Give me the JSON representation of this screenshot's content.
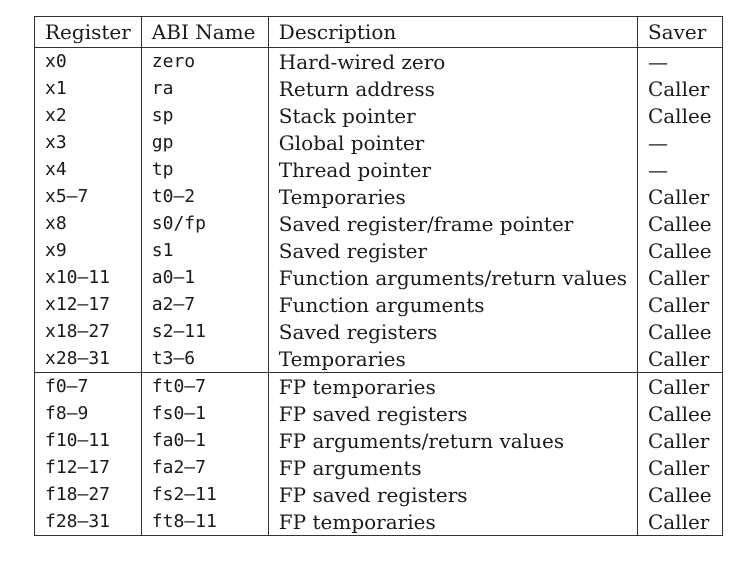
{
  "table": {
    "headers": [
      "Register",
      "ABI Name",
      "Description",
      "Saver"
    ],
    "integer_rows": [
      {
        "register": "x0",
        "abi": "zero",
        "description": "Hard-wired zero",
        "saver": "—"
      },
      {
        "register": "x1",
        "abi": "ra",
        "description": "Return address",
        "saver": "Caller"
      },
      {
        "register": "x2",
        "abi": "sp",
        "description": "Stack pointer",
        "saver": "Callee"
      },
      {
        "register": "x3",
        "abi": "gp",
        "description": "Global pointer",
        "saver": "—"
      },
      {
        "register": "x4",
        "abi": "tp",
        "description": "Thread pointer",
        "saver": "—"
      },
      {
        "register": "x5–7",
        "abi": "t0–2",
        "description": "Temporaries",
        "saver": "Caller"
      },
      {
        "register": "x8",
        "abi": "s0/fp",
        "description": "Saved register/frame pointer",
        "saver": "Callee"
      },
      {
        "register": "x9",
        "abi": "s1",
        "description": "Saved register",
        "saver": "Callee"
      },
      {
        "register": "x10–11",
        "abi": "a0–1",
        "description": "Function arguments/return values",
        "saver": "Caller"
      },
      {
        "register": "x12–17",
        "abi": "a2–7",
        "description": "Function arguments",
        "saver": "Caller"
      },
      {
        "register": "x18–27",
        "abi": "s2–11",
        "description": "Saved registers",
        "saver": "Callee"
      },
      {
        "register": "x28–31",
        "abi": "t3–6",
        "description": "Temporaries",
        "saver": "Caller"
      }
    ],
    "fp_rows": [
      {
        "register": "f0–7",
        "abi": "ft0–7",
        "description": "FP temporaries",
        "saver": "Caller"
      },
      {
        "register": "f8–9",
        "abi": "fs0–1",
        "description": "FP saved registers",
        "saver": "Callee"
      },
      {
        "register": "f10–11",
        "abi": "fa0–1",
        "description": "FP arguments/return values",
        "saver": "Caller"
      },
      {
        "register": "f12–17",
        "abi": "fa2–7",
        "description": "FP arguments",
        "saver": "Caller"
      },
      {
        "register": "f18–27",
        "abi": "fs2–11",
        "description": "FP saved registers",
        "saver": "Callee"
      },
      {
        "register": "f28–31",
        "abi": "ft8–11",
        "description": "FP temporaries",
        "saver": "Caller"
      }
    ]
  }
}
